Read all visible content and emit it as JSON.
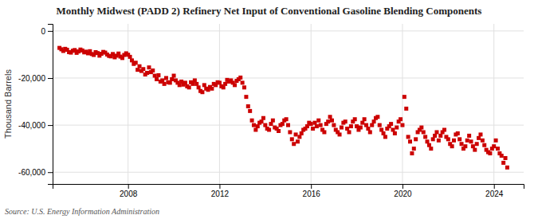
{
  "chart_data": {
    "type": "scatter",
    "title": "Monthly Midwest (PADD 2) Refinery Net Input of Conventional Gasoline Blending Components",
    "ylabel": "Thousand Barrels",
    "annotations": [
      "Source: U.S. Energy Information Administration"
    ],
    "color": "#cc0000",
    "marker": "square",
    "grid": true,
    "xlim": [
      2004.7,
      2025.3
    ],
    "xticks": [
      2008,
      2012,
      2016,
      2020,
      2024
    ],
    "ylim": [
      -65000,
      3000
    ],
    "yticks": [
      0,
      {
        "value": -20000,
        "label": "-20,000"
      },
      {
        "value": -40000,
        "label": "-40,000"
      },
      {
        "value": -60000,
        "label": "-60,000"
      }
    ],
    "x": [
      2005.0,
      2005.083,
      2005.167,
      2005.25,
      2005.333,
      2005.417,
      2005.5,
      2005.583,
      2005.667,
      2005.75,
      2005.833,
      2005.917,
      2006.0,
      2006.083,
      2006.167,
      2006.25,
      2006.333,
      2006.417,
      2006.5,
      2006.583,
      2006.667,
      2006.75,
      2006.833,
      2006.917,
      2007.0,
      2007.083,
      2007.167,
      2007.25,
      2007.333,
      2007.417,
      2007.5,
      2007.583,
      2007.667,
      2007.75,
      2007.833,
      2007.917,
      2008.0,
      2008.083,
      2008.167,
      2008.25,
      2008.333,
      2008.417,
      2008.5,
      2008.583,
      2008.667,
      2008.75,
      2008.833,
      2008.917,
      2009.0,
      2009.083,
      2009.167,
      2009.25,
      2009.333,
      2009.417,
      2009.5,
      2009.583,
      2009.667,
      2009.75,
      2009.833,
      2009.917,
      2010.0,
      2010.083,
      2010.167,
      2010.25,
      2010.333,
      2010.417,
      2010.5,
      2010.583,
      2010.667,
      2010.75,
      2010.833,
      2010.917,
      2011.0,
      2011.083,
      2011.167,
      2011.25,
      2011.333,
      2011.417,
      2011.5,
      2011.583,
      2011.667,
      2011.75,
      2011.833,
      2011.917,
      2012.0,
      2012.083,
      2012.167,
      2012.25,
      2012.333,
      2012.417,
      2012.5,
      2012.583,
      2012.667,
      2012.75,
      2012.833,
      2012.917,
      2013.0,
      2013.083,
      2013.167,
      2013.25,
      2013.333,
      2013.417,
      2013.5,
      2013.583,
      2013.667,
      2013.75,
      2013.833,
      2013.917,
      2014.0,
      2014.083,
      2014.167,
      2014.25,
      2014.333,
      2014.417,
      2014.5,
      2014.583,
      2014.667,
      2014.75,
      2014.833,
      2014.917,
      2015.0,
      2015.083,
      2015.167,
      2015.25,
      2015.333,
      2015.417,
      2015.5,
      2015.583,
      2015.667,
      2015.75,
      2015.833,
      2015.917,
      2016.0,
      2016.083,
      2016.167,
      2016.25,
      2016.333,
      2016.417,
      2016.5,
      2016.583,
      2016.667,
      2016.75,
      2016.833,
      2016.917,
      2017.0,
      2017.083,
      2017.167,
      2017.25,
      2017.333,
      2017.417,
      2017.5,
      2017.583,
      2017.667,
      2017.75,
      2017.833,
      2017.917,
      2018.0,
      2018.083,
      2018.167,
      2018.25,
      2018.333,
      2018.417,
      2018.5,
      2018.583,
      2018.667,
      2018.75,
      2018.833,
      2018.917,
      2019.0,
      2019.083,
      2019.167,
      2019.25,
      2019.333,
      2019.417,
      2019.5,
      2019.583,
      2019.667,
      2019.75,
      2019.833,
      2019.917,
      2020.0,
      2020.083,
      2020.167,
      2020.25,
      2020.333,
      2020.417,
      2020.5,
      2020.583,
      2020.667,
      2020.75,
      2020.833,
      2020.917,
      2021.0,
      2021.083,
      2021.167,
      2021.25,
      2021.333,
      2021.417,
      2021.5,
      2021.583,
      2021.667,
      2021.75,
      2021.833,
      2021.917,
      2022.0,
      2022.083,
      2022.167,
      2022.25,
      2022.333,
      2022.417,
      2022.5,
      2022.583,
      2022.667,
      2022.75,
      2022.833,
      2022.917,
      2023.0,
      2023.083,
      2023.167,
      2023.25,
      2023.333,
      2023.417,
      2023.5,
      2023.583,
      2023.667,
      2023.75,
      2023.833,
      2023.917,
      2024.0,
      2024.083,
      2024.167,
      2024.25,
      2024.333,
      2024.417,
      2024.5,
      2024.583
    ],
    "values": [
      -7200,
      -7800,
      -8500,
      -7600,
      -8000,
      -9000,
      -9200,
      -8400,
      -8100,
      -9300,
      -8700,
      -7900,
      -8300,
      -9100,
      -8800,
      -9500,
      -8600,
      -9800,
      -10200,
      -9000,
      -9400,
      -10500,
      -9700,
      -8900,
      -9200,
      -10000,
      -10600,
      -10800,
      -9800,
      -11200,
      -10500,
      -9600,
      -10900,
      -11500,
      -10200,
      -9500,
      -10100,
      -11000,
      -12500,
      -14000,
      -13500,
      -16500,
      -15000,
      -17000,
      -16200,
      -18500,
      -17800,
      -15500,
      -17500,
      -16800,
      -19000,
      -20500,
      -18800,
      -21500,
      -21000,
      -22500,
      -20000,
      -21800,
      -22000,
      -20500,
      -19000,
      -21000,
      -22000,
      -23000,
      -21500,
      -22800,
      -22000,
      -23500,
      -24000,
      -21800,
      -22500,
      -21000,
      -22500,
      -24000,
      -25500,
      -26000,
      -23000,
      -24500,
      -25000,
      -23800,
      -24500,
      -22500,
      -23000,
      -21800,
      -22000,
      -23500,
      -24000,
      -22500,
      -20800,
      -21500,
      -21000,
      -22000,
      -23000,
      -21200,
      -20500,
      -19800,
      -22000,
      -24000,
      -28000,
      -32000,
      -34000,
      -38000,
      -40000,
      -42000,
      -40500,
      -39000,
      -38500,
      -37000,
      -40000,
      -41500,
      -42000,
      -39500,
      -38000,
      -41000,
      -41500,
      -42500,
      -40000,
      -39500,
      -38000,
      -37500,
      -40000,
      -43000,
      -46000,
      -48000,
      -44000,
      -47000,
      -45000,
      -43500,
      -42000,
      -41500,
      -40500,
      -39000,
      -39500,
      -41500,
      -39000,
      -40500,
      -38000,
      -40000,
      -42000,
      -43000,
      -39500,
      -38500,
      -36500,
      -38000,
      -40000,
      -42000,
      -43000,
      -44000,
      -41000,
      -39000,
      -38500,
      -41500,
      -43000,
      -40500,
      -38500,
      -37500,
      -40500,
      -42000,
      -41000,
      -39000,
      -37500,
      -40000,
      -41500,
      -43000,
      -40000,
      -38500,
      -37000,
      -36500,
      -40000,
      -42000,
      -43500,
      -45000,
      -41500,
      -40500,
      -39500,
      -42000,
      -43500,
      -41000,
      -38500,
      -37500,
      -40000,
      -28000,
      -33000,
      -45000,
      -47000,
      -52000,
      -50000,
      -46000,
      -43000,
      -42000,
      -41000,
      -43000,
      -45000,
      -47000,
      -48500,
      -50000,
      -46000,
      -44500,
      -43000,
      -46500,
      -44500,
      -43000,
      -42000,
      -45000,
      -46000,
      -48000,
      -49000,
      -46500,
      -44000,
      -43500,
      -46000,
      -48000,
      -50000,
      -49000,
      -46500,
      -44500,
      -47000,
      -49000,
      -50500,
      -48000,
      -45500,
      -44000,
      -46500,
      -48500,
      -50500,
      -51500,
      -52000,
      -50000,
      -49000,
      -46500,
      -50000,
      -52000,
      -53000,
      -56000,
      -54000,
      -58000
    ]
  }
}
